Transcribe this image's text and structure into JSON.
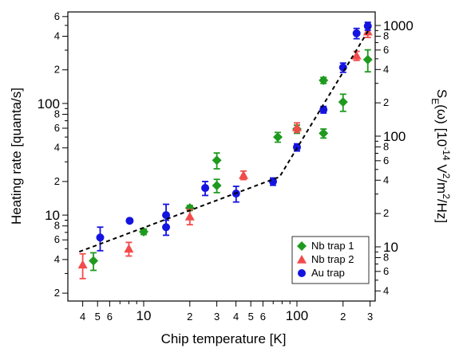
{
  "chart_data": {
    "type": "scatter",
    "xlabel": "Chip temperature [K]",
    "ylabel": "Heating rate [quanta/s]",
    "y2label": [
      {
        "text": "S"
      },
      {
        "text": "E",
        "shift": "sub"
      },
      {
        "text": "(ω) [10"
      },
      {
        "text": "-14",
        "shift": "super"
      },
      {
        "text": " V"
      },
      {
        "text": "2",
        "shift": "super"
      },
      {
        "text": "/m"
      },
      {
        "text": "2",
        "shift": "super"
      },
      {
        "text": "/Hz]"
      }
    ],
    "xscale": "log",
    "yscale": "log",
    "y2scale": "log",
    "xlim": [
      3.2,
      324
    ],
    "ylim": [
      1.7,
      660
    ],
    "y2lim": [
      3.24,
      1325
    ],
    "xticks": [
      4,
      5,
      6,
      10,
      {
        "value": 20,
        "label": "2"
      },
      {
        "value": 30,
        "label": "3"
      },
      {
        "value": 40,
        "label": "4"
      },
      {
        "value": 50,
        "label": "5"
      },
      {
        "value": 60,
        "label": "6"
      },
      100,
      {
        "value": 200,
        "label": "2"
      },
      {
        "value": 300,
        "label": "3"
      }
    ],
    "xminorticks": [
      7,
      8,
      9,
      70,
      80,
      90
    ],
    "yticks": [
      2,
      4,
      6,
      8,
      10,
      {
        "value": 20,
        "label": "2"
      },
      {
        "value": 40,
        "label": "4"
      },
      {
        "value": 60,
        "label": "6"
      },
      {
        "value": 80,
        "label": "8"
      },
      100,
      {
        "value": 200,
        "label": "2"
      },
      {
        "value": 400,
        "label": "4"
      },
      {
        "value": 600,
        "label": "6"
      }
    ],
    "yminorticks": [
      3,
      5,
      7,
      9,
      30,
      50,
      70,
      90,
      300,
      500
    ],
    "y2ticks": [
      4,
      6,
      8,
      10,
      {
        "value": 20,
        "label": "2"
      },
      {
        "value": 40,
        "label": "4"
      },
      {
        "value": 60,
        "label": "6"
      },
      {
        "value": 80,
        "label": "8"
      },
      100,
      {
        "value": 200,
        "label": "2"
      },
      {
        "value": 400,
        "label": "4"
      },
      {
        "value": 600,
        "label": "6"
      },
      {
        "value": 800,
        "label": "8"
      },
      1000
    ],
    "y2minorticks": [
      5,
      7,
      9,
      30,
      50,
      70,
      90,
      300,
      500,
      700,
      900
    ],
    "legend_position": "lower right",
    "series": [
      {
        "name": "Nb trap 1",
        "color": "#1f9a1f",
        "marker": "diamond",
        "x": [
          4.7,
          10,
          20,
          30,
          30,
          75,
          100,
          149,
          149,
          200,
          290
        ],
        "values": [
          3.9,
          7.1,
          11.6,
          18.4,
          31,
          50,
          59,
          161,
          54,
          103,
          247
        ],
        "errors": [
          0.7,
          0.4,
          0.6,
          2.5,
          5,
          5,
          5,
          10,
          5,
          18,
          55
        ]
      },
      {
        "name": "Nb trap 2",
        "color": "#f24b4b",
        "marker": "triangle",
        "x": [
          4,
          8,
          20,
          44.8,
          100,
          245,
          290
        ],
        "values": [
          3.6,
          5.0,
          9.7,
          22.8,
          61,
          268,
          440
        ],
        "errors": [
          0.9,
          0.7,
          1.5,
          2,
          6,
          25,
          50
        ]
      },
      {
        "name": "Au trap",
        "color": "#1414e0",
        "marker": "circle",
        "x": [
          5.2,
          8.1,
          14,
          14,
          25.2,
          40.1,
          69.8,
          100,
          149,
          200,
          245,
          290
        ],
        "values": [
          6.3,
          8.9,
          10,
          7.8,
          17.5,
          15.6,
          20,
          40.5,
          88,
          210,
          425,
          493
        ],
        "errors": [
          1.5,
          0.3,
          2.5,
          1.2,
          2.5,
          2.5,
          1.5,
          3,
          6,
          20,
          45,
          40
        ]
      },
      {
        "color": "#000000",
        "marker": "none",
        "dash": true,
        "x": [
          3.8,
          77,
          300
        ],
        "values": [
          4.7,
          22,
          477
        ]
      }
    ]
  }
}
